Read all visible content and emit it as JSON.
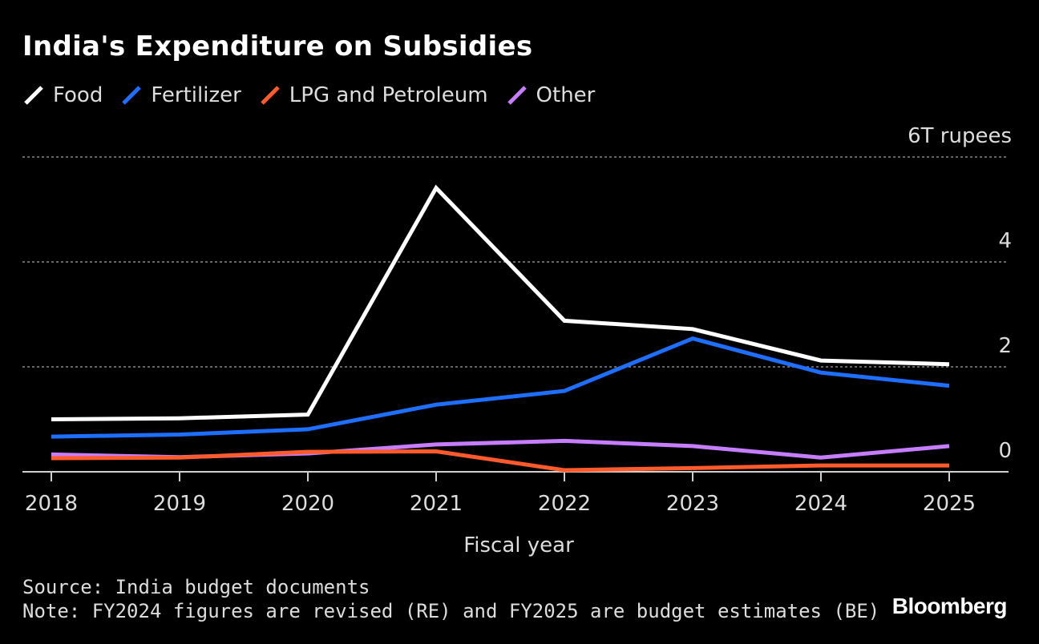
{
  "header": {
    "title": "India's Expenditure on Subsidies"
  },
  "footer": {
    "source": "Source: India budget documents",
    "note": "Note: FY2024 figures are revised (RE) and FY2025 are budget estimates (BE)",
    "brand": "Bloomberg"
  },
  "chart_data": {
    "type": "line",
    "title": "India's Expenditure on Subsidies",
    "xlabel": "Fiscal year",
    "ylabel": "",
    "y_unit_label": "6T rupees",
    "x": [
      "2018",
      "2019",
      "2020",
      "2021",
      "2022",
      "2023",
      "2024",
      "2025"
    ],
    "ylim": [
      0,
      6
    ],
    "yticks": [
      0,
      2,
      4,
      6
    ],
    "ytick_labels": [
      "0",
      "2",
      "4",
      "6T rupees"
    ],
    "grid": true,
    "legend_position": "top-left",
    "series": [
      {
        "name": "Food",
        "color": "#ffffff",
        "values": [
          1.0,
          1.02,
          1.09,
          5.41,
          2.88,
          2.72,
          2.12,
          2.05
        ]
      },
      {
        "name": "Fertilizer",
        "color": "#1f6fff",
        "values": [
          0.67,
          0.71,
          0.81,
          1.28,
          1.54,
          2.54,
          1.89,
          1.64
        ]
      },
      {
        "name": "LPG and Petroleum",
        "color": "#ff5a2c",
        "values": [
          0.26,
          0.27,
          0.38,
          0.39,
          0.03,
          0.07,
          0.12,
          0.12
        ]
      },
      {
        "name": "Other",
        "color": "#c77dff",
        "values": [
          0.33,
          0.28,
          0.35,
          0.52,
          0.59,
          0.49,
          0.27,
          0.49
        ]
      }
    ]
  }
}
